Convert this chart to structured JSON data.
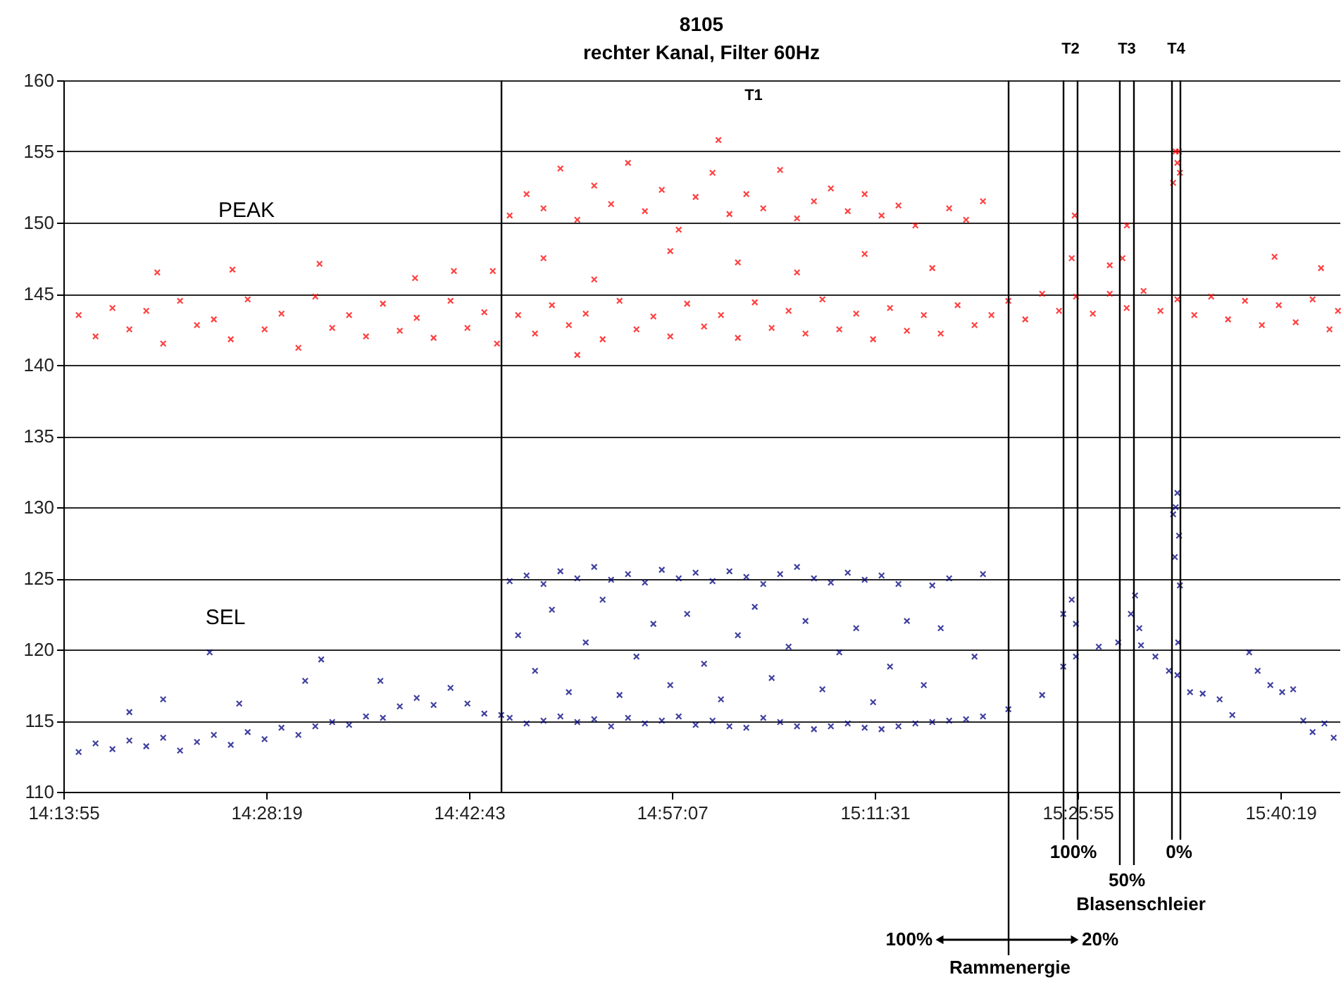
{
  "chart_data": {
    "type": "scatter",
    "title": "8105",
    "subtitle": "rechter Kanal, Filter 60Hz",
    "xlim": [
      14.231944,
      15.741944
    ],
    "xticks": [
      {
        "value": 14.231944,
        "label": "14:13:55"
      },
      {
        "value": 14.471944,
        "label": "14:28:19"
      },
      {
        "value": 14.711944,
        "label": "14:42:43"
      },
      {
        "value": 14.951944,
        "label": "14:57:07"
      },
      {
        "value": 15.191944,
        "label": "15:11:31"
      },
      {
        "value": 15.431944,
        "label": "15:25:55"
      },
      {
        "value": 15.671944,
        "label": "15:40:19"
      }
    ],
    "ylim": [
      110,
      160
    ],
    "yticks": [
      110,
      115,
      120,
      125,
      130,
      135,
      140,
      145,
      150,
      155,
      160
    ],
    "grid": "y",
    "marker": "cross",
    "series": [
      {
        "name": "PEAK",
        "color": "#ff0000",
        "x": [
          14.25,
          14.27,
          14.29,
          14.31,
          14.33,
          14.35,
          14.37,
          14.39,
          14.41,
          14.43,
          14.45,
          14.47,
          14.49,
          14.51,
          14.53,
          14.55,
          14.57,
          14.59,
          14.61,
          14.63,
          14.65,
          14.67,
          14.69,
          14.71,
          14.73,
          14.745,
          14.343,
          14.432,
          14.535,
          14.648,
          14.694,
          14.74,
          14.77,
          14.79,
          14.81,
          14.83,
          14.85,
          14.87,
          14.89,
          14.91,
          14.93,
          14.95,
          14.97,
          14.99,
          15.01,
          15.03,
          15.05,
          15.07,
          15.09,
          15.11,
          15.13,
          15.15,
          15.17,
          15.19,
          15.21,
          15.23,
          15.25,
          15.27,
          15.29,
          15.31,
          15.33,
          15.35,
          15.37,
          15.39,
          15.41,
          15.43,
          15.45,
          15.47,
          15.49,
          15.51,
          15.53,
          15.55,
          15.57,
          15.59,
          15.61,
          15.63,
          15.65,
          15.67,
          15.69,
          15.71,
          15.73,
          15.74,
          14.76,
          14.78,
          14.8,
          14.82,
          14.84,
          14.86,
          14.88,
          14.9,
          14.92,
          14.94,
          14.96,
          14.98,
          15.0,
          15.02,
          15.04,
          15.06,
          15.08,
          15.1,
          15.12,
          15.14,
          15.16,
          15.18,
          15.2,
          15.22,
          15.24,
          15.28,
          15.3,
          15.32,
          15.007,
          14.8,
          14.86,
          14.95,
          15.03,
          15.1,
          15.18,
          15.26,
          14.84,
          15.4286,
          15.425,
          15.4903,
          15.485,
          15.47,
          15.548,
          15.55,
          15.553,
          15.545,
          15.552,
          15.665,
          15.72
        ],
        "values": [
          143.5,
          142,
          144,
          142.5,
          143.8,
          141.5,
          144.5,
          142.8,
          143.2,
          141.8,
          144.6,
          142.5,
          143.6,
          141.2,
          144.8,
          142.6,
          143.5,
          142,
          144.3,
          142.4,
          143.3,
          141.9,
          144.5,
          142.6,
          143.7,
          141.5,
          146.5,
          146.7,
          147.1,
          146.1,
          146.6,
          146.6,
          143.5,
          142.2,
          144.2,
          142.8,
          143.6,
          141.8,
          144.5,
          142.5,
          143.4,
          142,
          144.3,
          142.7,
          143.5,
          141.9,
          144.4,
          142.6,
          143.8,
          142.2,
          144.6,
          142.5,
          143.6,
          141.8,
          144,
          142.4,
          143.5,
          142.2,
          144.2,
          142.8,
          143.5,
          144.5,
          143.2,
          145,
          143.8,
          144.8,
          143.6,
          145,
          144,
          145.2,
          143.8,
          144.6,
          143.5,
          144.8,
          143.2,
          144.5,
          142.8,
          144.2,
          143,
          144.6,
          142.5,
          143.8,
          150.5,
          152,
          151,
          153.8,
          150.2,
          152.6,
          151.3,
          154.2,
          150.8,
          152.3,
          149.5,
          151.8,
          153.5,
          150.6,
          152,
          151,
          153.7,
          150.3,
          151.5,
          152.4,
          150.8,
          152,
          150.5,
          151.2,
          149.8,
          151,
          150.2,
          151.5,
          155.8,
          147.5,
          146,
          148,
          147.2,
          146.5,
          147.8,
          146.8,
          140.7,
          150.5,
          147.5,
          149.8,
          147.5,
          147,
          155,
          154.2,
          153.5,
          152.8,
          155,
          147.6,
          146.8
        ]
      },
      {
        "name": "SEL",
        "color": "#000080",
        "x": [
          14.25,
          14.27,
          14.29,
          14.31,
          14.33,
          14.35,
          14.37,
          14.39,
          14.41,
          14.43,
          14.45,
          14.47,
          14.49,
          14.51,
          14.53,
          14.55,
          14.57,
          14.59,
          14.61,
          14.63,
          14.65,
          14.67,
          14.69,
          14.71,
          14.73,
          14.75,
          14.405,
          14.518,
          14.537,
          14.607,
          14.35,
          14.31,
          14.44,
          14.76,
          14.78,
          14.8,
          14.82,
          14.84,
          14.86,
          14.88,
          14.9,
          14.92,
          14.94,
          14.96,
          14.98,
          15.0,
          15.02,
          15.04,
          15.06,
          15.08,
          15.1,
          15.12,
          15.14,
          15.16,
          15.18,
          15.2,
          15.22,
          15.26,
          15.28,
          15.32,
          14.76,
          14.78,
          14.8,
          14.82,
          14.84,
          14.86,
          14.88,
          14.9,
          14.92,
          14.94,
          14.96,
          14.98,
          15.0,
          15.02,
          15.04,
          15.06,
          15.08,
          15.1,
          15.12,
          15.14,
          15.16,
          15.18,
          15.2,
          15.22,
          15.24,
          15.26,
          15.28,
          15.3,
          15.32,
          14.77,
          14.79,
          14.81,
          14.83,
          14.85,
          14.87,
          14.89,
          14.91,
          14.93,
          14.95,
          14.97,
          14.99,
          15.01,
          15.03,
          15.05,
          15.07,
          15.09,
          15.11,
          15.13,
          15.15,
          15.17,
          15.19,
          15.21,
          15.23,
          15.25,
          15.27,
          15.31,
          15.35,
          15.39,
          15.415,
          15.43,
          15.457,
          15.48,
          15.507,
          15.524,
          15.54,
          15.55,
          15.565,
          15.58,
          15.6,
          15.615,
          15.635,
          15.645,
          15.66,
          15.674,
          15.687,
          15.699,
          15.71,
          15.724,
          15.735,
          15.425,
          15.415,
          15.43,
          15.5,
          15.495,
          15.505,
          15.55,
          15.548,
          15.545,
          15.552,
          15.547,
          15.553,
          15.551
        ],
        "values": [
          112.8,
          113.4,
          113,
          113.6,
          113.2,
          113.8,
          112.9,
          113.5,
          114,
          113.3,
          114.2,
          113.7,
          114.5,
          114,
          114.6,
          114.9,
          114.7,
          115.3,
          115.2,
          116,
          116.6,
          116.1,
          117.3,
          116.2,
          115.5,
          115.4,
          119.8,
          117.8,
          119.3,
          117.8,
          116.5,
          115.6,
          116.2,
          124.8,
          125.2,
          124.6,
          125.5,
          125,
          125.8,
          124.9,
          125.3,
          124.7,
          125.6,
          125,
          125.4,
          124.8,
          125.5,
          125.1,
          124.6,
          125.3,
          125.8,
          125,
          124.7,
          125.4,
          124.9,
          125.2,
          124.6,
          124.5,
          125,
          125.3,
          115.2,
          114.8,
          115,
          115.3,
          114.9,
          115.1,
          114.6,
          115.2,
          114.8,
          115,
          115.3,
          114.7,
          115,
          114.6,
          114.5,
          115.2,
          114.9,
          114.6,
          114.4,
          114.6,
          114.8,
          114.5,
          114.4,
          114.6,
          114.8,
          114.9,
          115,
          115.1,
          115.3,
          121,
          118.5,
          122.8,
          117,
          120.5,
          123.5,
          116.8,
          119.5,
          121.8,
          117.5,
          122.5,
          119,
          116.5,
          121,
          123,
          118,
          120.2,
          122,
          117.2,
          119.8,
          121.5,
          116.3,
          118.8,
          122,
          117.5,
          121.5,
          119.5,
          115.8,
          116.8,
          118.8,
          119.5,
          120.2,
          120.5,
          120.3,
          119.5,
          118.5,
          118.2,
          117,
          116.9,
          116.5,
          115.4,
          119.8,
          118.5,
          117.5,
          117,
          117.2,
          115,
          114.2,
          114.8,
          113.8,
          123.5,
          122.5,
          121.8,
          123.8,
          122.5,
          121.5,
          131,
          130,
          129.5,
          128,
          126.5,
          124.5,
          120.5
        ]
      }
    ],
    "ref_lines": [
      {
        "axis": "x",
        "value": 14.7503,
        "color": "#000000"
      },
      {
        "axis": "x",
        "value": 15.3503,
        "color": "#000000"
      },
      {
        "axis": "x",
        "value": 15.4153,
        "color": "#000000"
      },
      {
        "axis": "x",
        "value": 15.4319,
        "color": "#000000"
      },
      {
        "axis": "x",
        "value": 15.4819,
        "color": "#000000"
      },
      {
        "axis": "x",
        "value": 15.4986,
        "color": "#000000"
      },
      {
        "axis": "x",
        "value": 15.5436,
        "color": "#000000"
      },
      {
        "axis": "x",
        "value": 15.5536,
        "color": "#000000"
      }
    ],
    "annotations": [
      "T1",
      "T2",
      "T3",
      "T4",
      "100%",
      "50%",
      "0%",
      "Blasenschleier",
      "100%",
      "20%",
      "Rammenergie"
    ]
  }
}
